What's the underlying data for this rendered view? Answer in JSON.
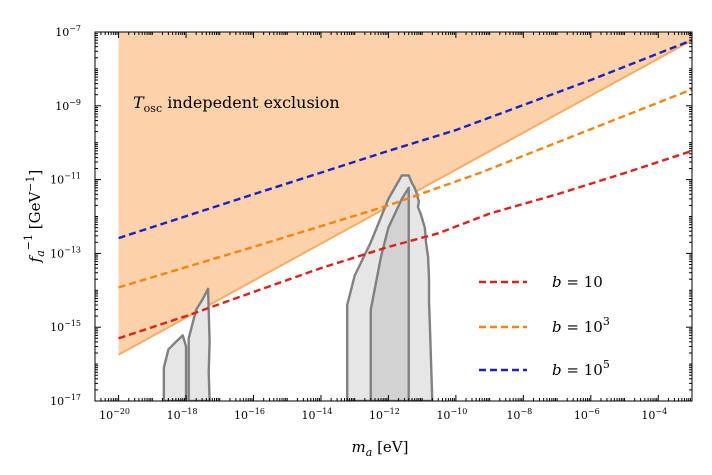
{
  "chart_data": {
    "type": "line",
    "x_scale": "log",
    "y_scale": "log",
    "xlabel": "m_a [eV]",
    "ylabel": "f_a^-1 [GeV^-1]",
    "xlim": [
      2e-21,
      0.001
    ],
    "ylim": [
      1e-17,
      1e-07
    ],
    "xticks": [
      {
        "value": 1e-20,
        "base": "10",
        "exp": "−20"
      },
      {
        "value": 1e-18,
        "base": "10",
        "exp": "−18"
      },
      {
        "value": 1e-16,
        "base": "10",
        "exp": "−16"
      },
      {
        "value": 1e-14,
        "base": "10",
        "exp": "−14"
      },
      {
        "value": 1e-12,
        "base": "10",
        "exp": "−12"
      },
      {
        "value": 1e-10,
        "base": "10",
        "exp": "−10"
      },
      {
        "value": 1e-08,
        "base": "10",
        "exp": "−8"
      },
      {
        "value": 1e-06,
        "base": "10",
        "exp": "−6"
      },
      {
        "value": 0.0001,
        "base": "10",
        "exp": "−4"
      }
    ],
    "yticks": [
      {
        "value": 1e-17,
        "base": "10",
        "exp": "−17"
      },
      {
        "value": 1e-15,
        "base": "10",
        "exp": "−15"
      },
      {
        "value": 1e-13,
        "base": "10",
        "exp": "−13"
      },
      {
        "value": 1e-11,
        "base": "10",
        "exp": "−11"
      },
      {
        "value": 1e-09,
        "base": "10",
        "exp": "−9"
      },
      {
        "value": 1e-07,
        "base": "10",
        "exp": "−7"
      }
    ],
    "grid": false,
    "legend_position": "bottom-right",
    "annotation": {
      "main": "T",
      "sub": "osc",
      "rest": " indepedent exclusion"
    },
    "exclusion_region": {
      "name": "T_osc independent exclusion",
      "color": "#fdd2aa",
      "edge_color": "#f8ad66",
      "boundary": [
        [
          1e-20,
          1.8e-16
        ],
        [
          0.001,
          6e-08
        ]
      ]
    },
    "series": [
      {
        "name": "b = 10",
        "label_rest": " = 10",
        "color": "#e0201b",
        "points": [
          [
            1e-20,
            5e-16
          ],
          [
            1e-18,
            2e-15
          ],
          [
            1e-16,
            9e-15
          ],
          [
            1e-14,
            4e-14
          ],
          [
            1e-12,
            1.5e-13
          ],
          [
            3e-11,
            3.5e-13
          ],
          [
            1e-09,
            1.2e-12
          ],
          [
            1e-07,
            4e-12
          ],
          [
            1e-05,
            1.5e-11
          ],
          [
            0.001,
            6e-11
          ]
        ]
      },
      {
        "name": "b = 10^3",
        "label_rest": " = 10",
        "label_sup": "3",
        "color": "#f5850f",
        "points": [
          [
            1e-20,
            1.2e-14
          ],
          [
            1e-16,
            1.5e-13
          ],
          [
            1e-12,
            2e-12
          ],
          [
            5e-10,
            1.5e-11
          ],
          [
            0.001,
            2.8e-09
          ]
        ]
      },
      {
        "name": "b = 10^5",
        "label_rest": " = 10",
        "label_sup": "5",
        "color": "#1a20c8",
        "points": [
          [
            1e-20,
            2.6e-13
          ],
          [
            1e-16,
            4e-12
          ],
          [
            1e-12,
            6e-11
          ],
          [
            1e-10,
            2.2e-10
          ],
          [
            1e-06,
            5e-09
          ],
          [
            0.001,
            6e-08
          ]
        ]
      }
    ],
    "constraint_regions": [
      {
        "name": "constraint-left",
        "fill": "#e6e6e6",
        "stroke": "#808080",
        "points": [
          [
            2.2e-19,
            1e-17
          ],
          [
            2.2e-19,
            8e-17
          ],
          [
            3e-19,
            2.5e-16
          ],
          [
            5e-19,
            4e-16
          ],
          [
            8e-19,
            6e-16
          ],
          [
            1e-18,
            3e-16
          ],
          [
            1e-18,
            1e-17
          ]
        ]
      },
      {
        "name": "constraint-mid",
        "fill": "#e6e6e6",
        "stroke": "#808080",
        "points": [
          [
            1.2e-18,
            1e-17
          ],
          [
            1.2e-18,
            5e-16
          ],
          [
            2e-18,
            3e-15
          ],
          [
            3.2e-18,
            6e-15
          ],
          [
            4.5e-18,
            1.1e-14
          ],
          [
            5e-18,
            4e-16
          ],
          [
            4.7e-18,
            6e-17
          ],
          [
            5e-18,
            1e-17
          ]
        ]
      },
      {
        "name": "constraint-right-outer",
        "fill": "#e6e6e6",
        "stroke": "#808080",
        "points": [
          [
            6e-14,
            1e-17
          ],
          [
            6e-14,
            4e-15
          ],
          [
            1e-13,
            2.5e-14
          ],
          [
            3e-13,
            2e-13
          ],
          [
            1e-12,
            3e-12
          ],
          [
            2.5e-12,
            1.3e-11
          ],
          [
            4e-12,
            1.3e-11
          ],
          [
            5e-12,
            8e-12
          ],
          [
            6e-12,
            6e-12
          ],
          [
            7e-12,
            4e-12
          ],
          [
            8e-12,
            2.5e-12
          ],
          [
            7.5e-12,
            1.8e-12
          ],
          [
            9e-12,
            1.2e-12
          ],
          [
            1.2e-11,
            5e-13
          ],
          [
            1.3e-11,
            2e-13
          ],
          [
            1.5e-11,
            8e-14
          ],
          [
            1.6e-11,
            2e-14
          ],
          [
            1.6e-11,
            5e-15
          ],
          [
            1.7e-11,
            1e-15
          ],
          [
            2e-11,
            1e-17
          ]
        ]
      },
      {
        "name": "constraint-right-inner",
        "fill": "#d2d2d2",
        "stroke": "#808080",
        "points": [
          [
            3e-13,
            1e-17
          ],
          [
            3e-13,
            3e-15
          ],
          [
            6e-13,
            8e-14
          ],
          [
            1e-12,
            5e-13
          ],
          [
            2.5e-12,
            3e-12
          ],
          [
            4e-12,
            6e-12
          ],
          [
            4e-12,
            1e-17
          ]
        ]
      }
    ]
  }
}
